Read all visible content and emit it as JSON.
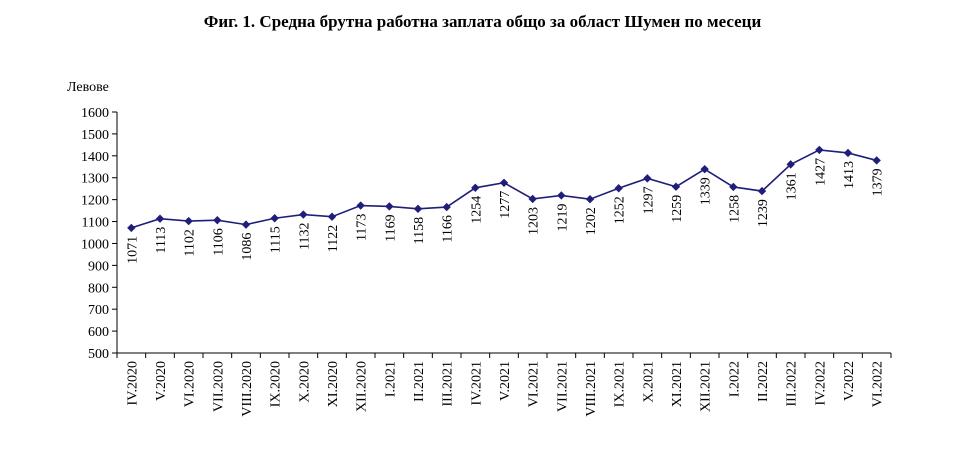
{
  "chart_data": {
    "type": "line",
    "title": "Фиг. 1. Средна брутна работна заплата общо за област Шумен по месеци",
    "ylabel": "Левове",
    "xlabel": "",
    "ylim": [
      500,
      1600
    ],
    "yticks": [
      500,
      600,
      700,
      800,
      900,
      1000,
      1100,
      1200,
      1300,
      1400,
      1500,
      1600
    ],
    "grid": false,
    "legend": "none",
    "line_color": "#1f1f7a",
    "categories": [
      "IV.2020",
      "V.2020",
      "VI.2020",
      "VII.2020",
      "VIII.2020",
      "IX.2020",
      "X.2020",
      "XI.2020",
      "XII.2020",
      "I.2021",
      "II.2021",
      "III.2021",
      "IV.2021",
      "V.2021",
      "VI.2021",
      "VII.2021",
      "VIII.2021",
      "IX.2021",
      "X.2021",
      "XI.2021",
      "XII.2021",
      "I.2022",
      "II.2022",
      "III.2022",
      "IV.2022",
      "V.2022",
      "VI.2022"
    ],
    "values": [
      1071,
      1113,
      1102,
      1106,
      1086,
      1115,
      1132,
      1122,
      1173,
      1169,
      1158,
      1166,
      1254,
      1277,
      1203,
      1219,
      1202,
      1252,
      1297,
      1259,
      1339,
      1258,
      1239,
      1361,
      1427,
      1413,
      1379
    ]
  }
}
